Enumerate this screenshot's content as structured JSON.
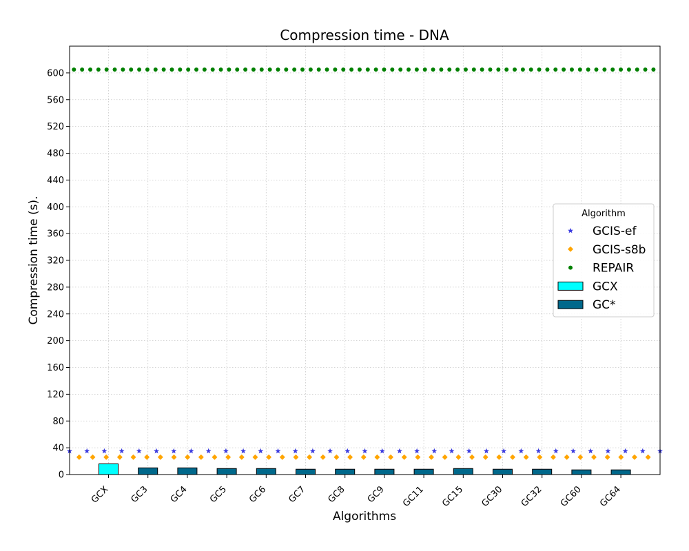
{
  "chart_data": {
    "type": "bar",
    "title": "Compression time -  DNA",
    "xlabel": "Algorithms",
    "ylabel": "Compression time (s).",
    "ylim": [
      0,
      640
    ],
    "yticks": [
      0,
      40,
      80,
      120,
      160,
      200,
      240,
      280,
      320,
      360,
      400,
      440,
      480,
      520,
      560,
      600
    ],
    "grid": true,
    "legend": {
      "title": "Algorithm",
      "placement": "center-right",
      "entries": [
        "GCIS-ef",
        "GCIS-s8b",
        "REPAIR",
        "GCX",
        "GC*"
      ]
    },
    "categories": [
      "GCX",
      "GC3",
      "GC4",
      "GC5",
      "GC6",
      "GC7",
      "GC8",
      "GC9",
      "GC11",
      "GC15",
      "GC30",
      "GC32",
      "GC60",
      "GC64"
    ],
    "series": [
      {
        "name": "GC*",
        "kind": "bar",
        "color": "#00688b",
        "values": [
          null,
          10,
          10,
          9,
          9,
          8,
          8,
          8,
          8,
          9,
          8,
          8,
          7,
          7
        ]
      },
      {
        "name": "GCX",
        "kind": "bar",
        "color": "#00ffff",
        "values": [
          16,
          null,
          null,
          null,
          null,
          null,
          null,
          null,
          null,
          null,
          null,
          null,
          null,
          null
        ]
      },
      {
        "name": "GCIS-ef",
        "kind": "constant-line",
        "marker": "star",
        "color": "#3a3ae0",
        "value": 35
      },
      {
        "name": "GCIS-s8b",
        "kind": "constant-line",
        "marker": "diamond",
        "color": "#ffa500",
        "value": 26
      },
      {
        "name": "REPAIR",
        "kind": "constant-line",
        "marker": "circle",
        "color": "#008000",
        "value": 605
      }
    ]
  }
}
